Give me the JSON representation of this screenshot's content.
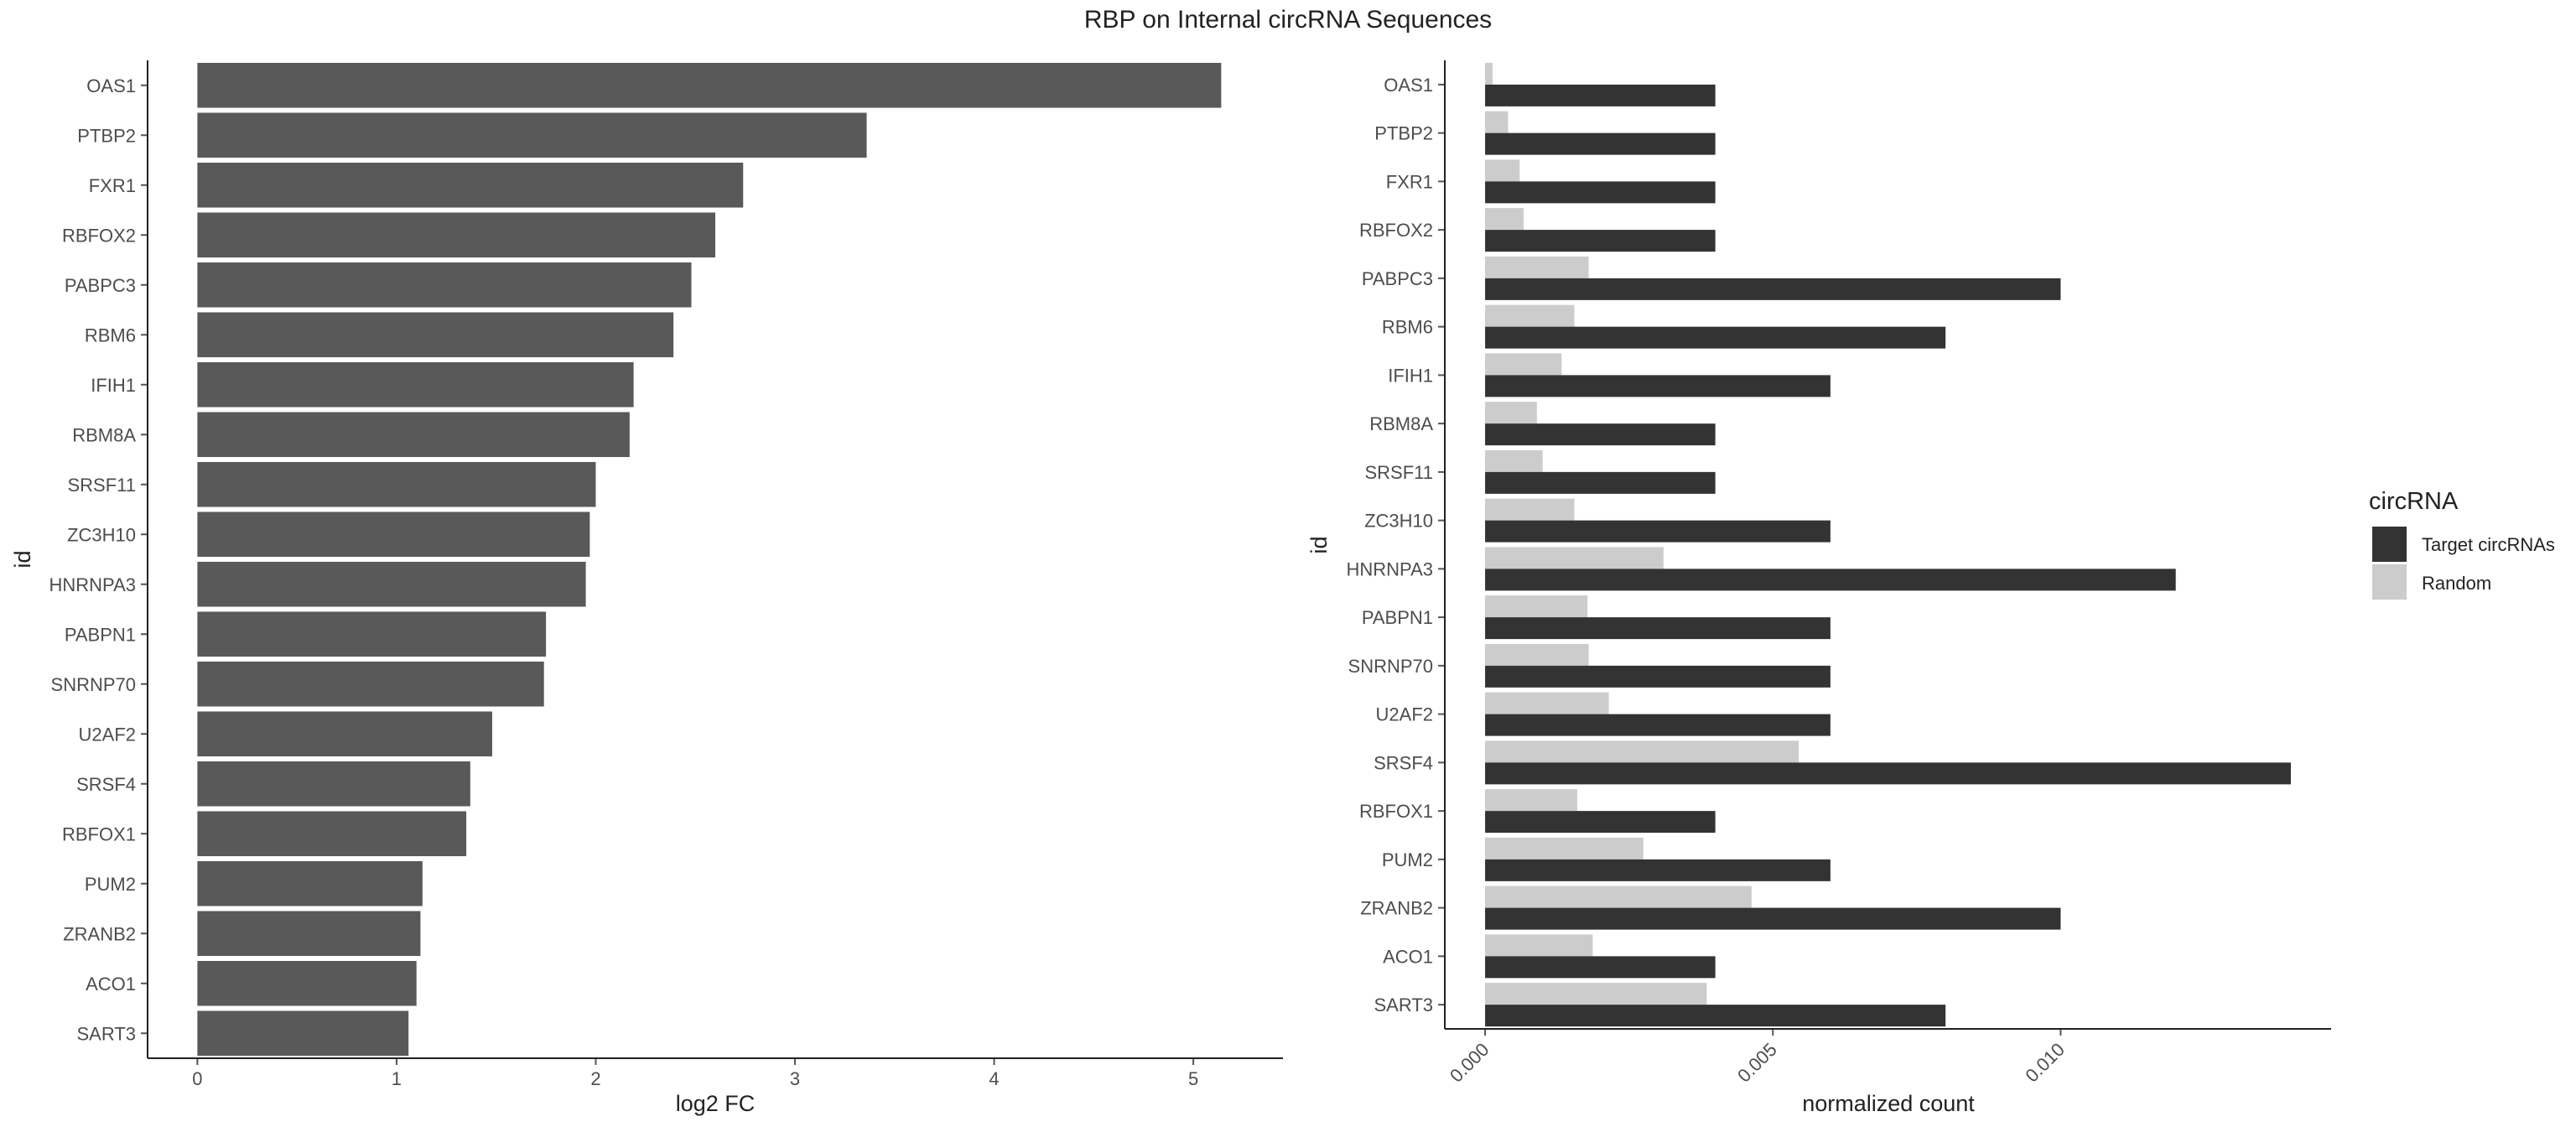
{
  "title": "RBP on Internal circRNA Sequences",
  "chart_data": [
    {
      "type": "bar",
      "orientation": "horizontal",
      "categories": [
        "OAS1",
        "PTBP2",
        "FXR1",
        "RBFOX2",
        "PABPC3",
        "RBM6",
        "IFIH1",
        "RBM8A",
        "SRSF11",
        "ZC3H10",
        "HNRNPA3",
        "PABPN1",
        "SNRNP70",
        "U2AF2",
        "SRSF4",
        "RBFOX1",
        "PUM2",
        "ZRANB2",
        "ACO1",
        "SART3"
      ],
      "values": [
        5.14,
        3.36,
        2.74,
        2.6,
        2.48,
        2.39,
        2.19,
        2.17,
        2.0,
        1.97,
        1.95,
        1.75,
        1.74,
        1.48,
        1.37,
        1.35,
        1.13,
        1.12,
        1.1,
        1.06
      ],
      "xlabel": "log2 FC",
      "ylabel": "id",
      "xlim": [
        -0.25,
        5.45
      ],
      "xticks": [
        0,
        1,
        2,
        3,
        4,
        5
      ],
      "xtick_labels": [
        "0",
        "1",
        "2",
        "3",
        "4",
        "5"
      ],
      "grid": false,
      "bar_color": "#595959"
    },
    {
      "type": "bar",
      "orientation": "horizontal",
      "grouped": true,
      "categories": [
        "OAS1",
        "PTBP2",
        "FXR1",
        "RBFOX2",
        "PABPC3",
        "RBM6",
        "IFIH1",
        "RBM8A",
        "SRSF11",
        "ZC3H10",
        "HNRNPA3",
        "PABPN1",
        "SNRNP70",
        "U2AF2",
        "SRSF4",
        "RBFOX1",
        "PUM2",
        "ZRANB2",
        "ACO1",
        "SART3"
      ],
      "series": [
        {
          "name": "Target circRNAs",
          "color": "#333333",
          "values": [
            0.004,
            0.004,
            0.004,
            0.004,
            0.01,
            0.008,
            0.006,
            0.004,
            0.004,
            0.006,
            0.012,
            0.006,
            0.006,
            0.006,
            0.014,
            0.004,
            0.006,
            0.01,
            0.004,
            0.008
          ]
        },
        {
          "name": "Random",
          "color": "#cccccc",
          "values": [
            0.00013,
            0.0004,
            0.0006,
            0.00067,
            0.0018,
            0.00155,
            0.00133,
            0.0009,
            0.001,
            0.00155,
            0.0031,
            0.00178,
            0.0018,
            0.00215,
            0.00545,
            0.0016,
            0.00275,
            0.00463,
            0.00187,
            0.00385
          ]
        }
      ],
      "xlabel": "normalized count",
      "ylabel": "id",
      "xlim": [
        -0.0007,
        0.0147
      ],
      "xticks": [
        0.0,
        0.005,
        0.01
      ],
      "xtick_labels": [
        "0.000",
        "0.005",
        "0.010"
      ],
      "legend_title": "circRNA",
      "legend_position": "right",
      "grid": false
    }
  ]
}
